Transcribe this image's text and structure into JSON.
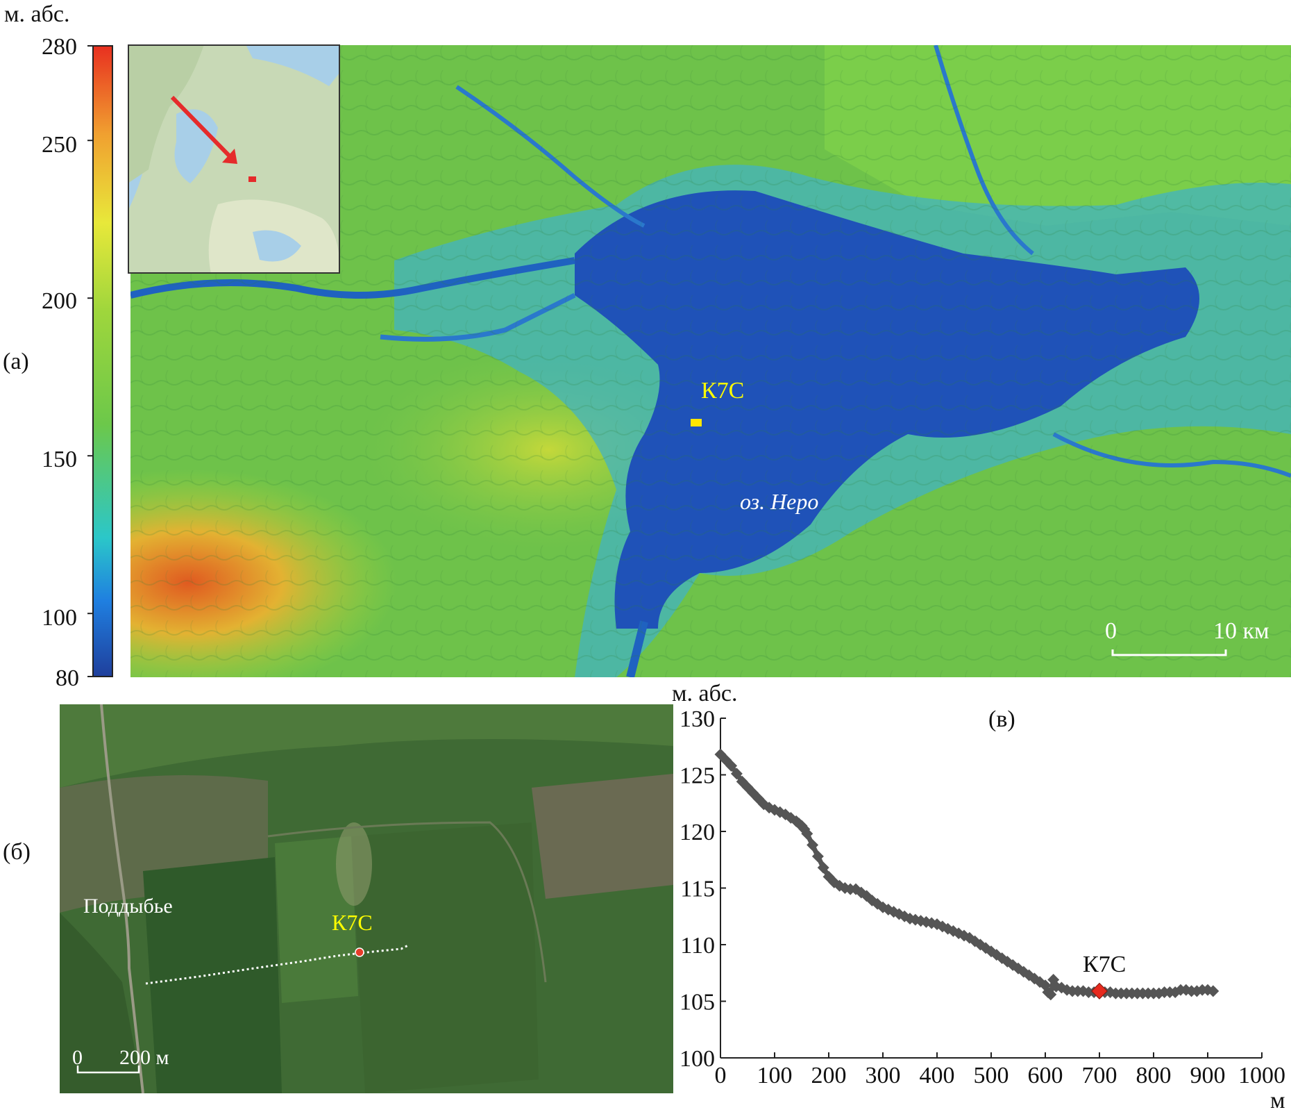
{
  "panel_labels": {
    "a": "(а)",
    "b": "(б)",
    "c": "(в)"
  },
  "colorbar": {
    "unit": "м. абс.",
    "ticks": [
      "280",
      "250",
      "200",
      "150",
      "100",
      "80"
    ],
    "range": [
      80,
      280
    ],
    "colors": [
      "#1f3f9c",
      "#1f7fe0",
      "#2bc7c9",
      "#6cc84a",
      "#9fd63c",
      "#e8e83a",
      "#f0a030",
      "#e83020"
    ]
  },
  "panel_a": {
    "site_label": "К7С",
    "lake_label": "оз. Неро",
    "scale": {
      "start": "0",
      "end": "10 км"
    },
    "colors": {
      "lake": "#1f52b8",
      "land": "#6ec24a",
      "site_marker": "#ffe600",
      "arrow": "#e52b2b"
    }
  },
  "panel_b": {
    "village_label": "Поддыбье",
    "site_label": "К7С",
    "scale": {
      "start": "0",
      "end": "200 м"
    },
    "colors": {
      "field": "#3f6a34",
      "site_marker": "#e63c2a"
    }
  },
  "chart_data": {
    "type": "line",
    "title": "",
    "ylabel": "м. абс.",
    "xlabel": "м",
    "xlim": [
      0,
      1000
    ],
    "ylim": [
      100,
      130
    ],
    "xticks": [
      0,
      100,
      200,
      300,
      400,
      500,
      600,
      700,
      800,
      900,
      1000
    ],
    "yticks": [
      100,
      105,
      110,
      115,
      120,
      125,
      130
    ],
    "series": [
      {
        "x": [
          0,
          10,
          20,
          30,
          40,
          50,
          60,
          70,
          80,
          90,
          100,
          110,
          120,
          130,
          140,
          145,
          150,
          155,
          160,
          170,
          180,
          190,
          200,
          210,
          220,
          230,
          240,
          250,
          260,
          270,
          280,
          290,
          300,
          310,
          320,
          330,
          340,
          350,
          360,
          370,
          380,
          390,
          400,
          410,
          420,
          430,
          440,
          450,
          460,
          470,
          480,
          490,
          500,
          510,
          520,
          530,
          540,
          550,
          560,
          570,
          580,
          590,
          600,
          605,
          610,
          615,
          620,
          630,
          640,
          650,
          660,
          670,
          680,
          690,
          700,
          710,
          720,
          730,
          740,
          750,
          760,
          770,
          780,
          790,
          800,
          810,
          820,
          830,
          840,
          850,
          860,
          870,
          880,
          890,
          900,
          910
        ],
        "y": [
          126.8,
          126.3,
          125.8,
          125.1,
          124.4,
          123.9,
          123.4,
          122.9,
          122.4,
          122.1,
          121.9,
          121.7,
          121.5,
          121.2,
          120.9,
          120.7,
          120.5,
          120.2,
          119.8,
          118.8,
          117.8,
          116.8,
          116.0,
          115.5,
          115.2,
          115.0,
          114.9,
          114.9,
          114.6,
          114.3,
          113.9,
          113.6,
          113.3,
          113.1,
          112.9,
          112.7,
          112.5,
          112.3,
          112.2,
          112.1,
          112.0,
          111.9,
          111.8,
          111.6,
          111.4,
          111.2,
          111.0,
          110.8,
          110.6,
          110.3,
          110.0,
          109.7,
          109.4,
          109.1,
          108.8,
          108.5,
          108.2,
          107.9,
          107.6,
          107.3,
          107.0,
          106.7,
          106.4,
          105.8,
          105.6,
          106.9,
          106.3,
          106.2,
          106.0,
          105.9,
          105.9,
          105.9,
          105.8,
          105.8,
          105.9,
          105.8,
          105.8,
          105.7,
          105.7,
          105.7,
          105.7,
          105.7,
          105.7,
          105.7,
          105.7,
          105.7,
          105.8,
          105.8,
          105.8,
          106.0,
          106.0,
          105.9,
          105.9,
          106.0,
          106.0,
          105.9
        ]
      }
    ],
    "marker": {
      "label": "К7С",
      "x": 700,
      "y": 105.9,
      "color": "#e62a1e"
    },
    "line_color": "#555555",
    "grid": false
  }
}
